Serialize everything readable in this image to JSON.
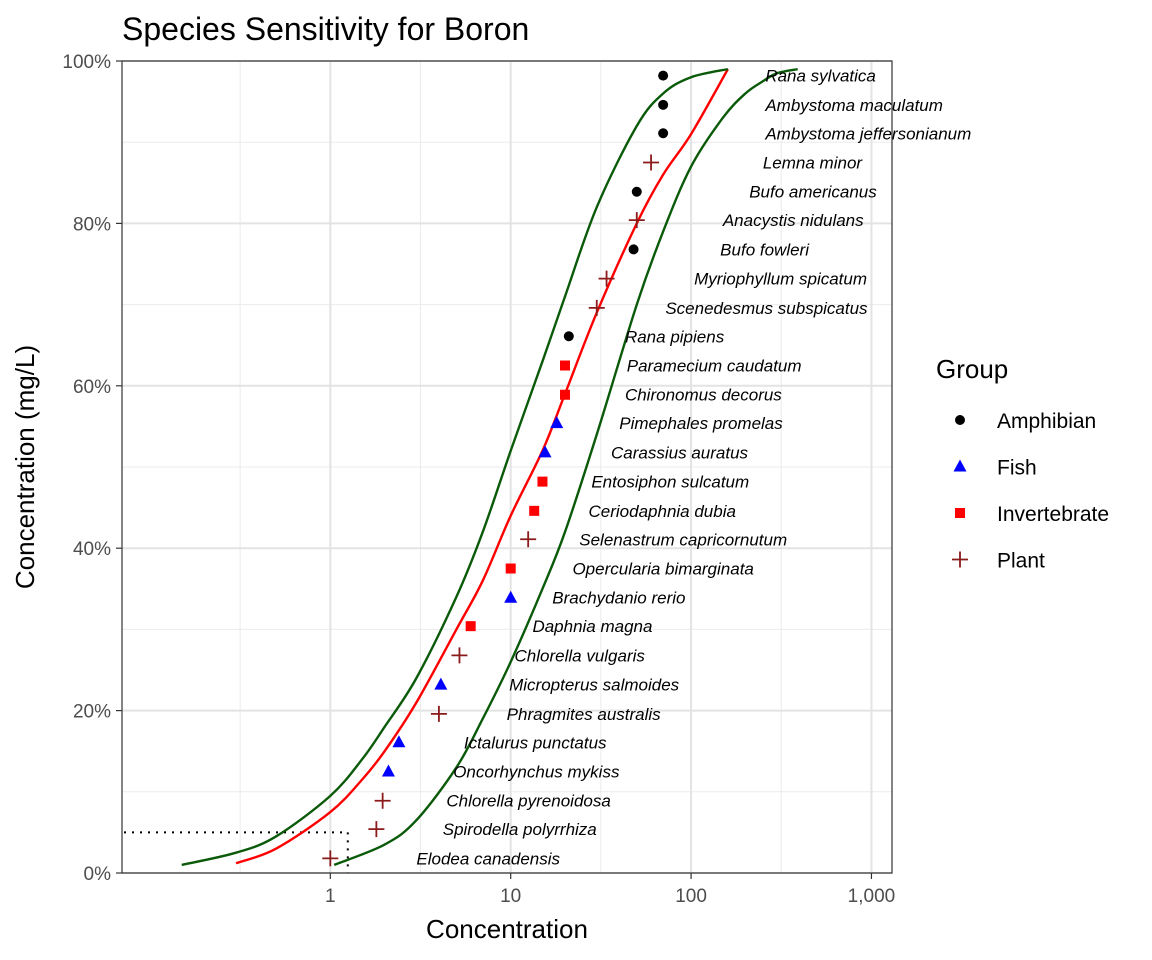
{
  "chart_data": {
    "type": "scatter",
    "title": "Species Sensitivity for Boron",
    "xlabel": "Concentration",
    "ylabel": "Concentration (mg/L)",
    "x_scale": "log10",
    "xlim": [
      0.07,
      1300
    ],
    "ylim": [
      0,
      1
    ],
    "x_ticks": [
      {
        "value": 1,
        "label": "1"
      },
      {
        "value": 10,
        "label": "10"
      },
      {
        "value": 100,
        "label": "100"
      },
      {
        "value": 1000,
        "label": "1,000"
      }
    ],
    "y_ticks": [
      {
        "value": 0,
        "label": "0%"
      },
      {
        "value": 0.2,
        "label": "20%"
      },
      {
        "value": 0.4,
        "label": "40%"
      },
      {
        "value": 0.6,
        "label": "60%"
      },
      {
        "value": 0.8,
        "label": "80%"
      },
      {
        "value": 1,
        "label": "100%"
      }
    ],
    "grid": true,
    "legend": {
      "title": "Group",
      "position": "right",
      "entries": [
        {
          "name": "Amphibian",
          "shape": "circle",
          "color": "#000000"
        },
        {
          "name": "Fish",
          "shape": "triangle",
          "color": "#0000ff"
        },
        {
          "name": "Invertebrate",
          "shape": "square",
          "color": "#ff0000"
        },
        {
          "name": "Plant",
          "shape": "plus",
          "color": "#8b1a1a"
        }
      ]
    },
    "points": [
      {
        "species": "Elodea canadensis",
        "group": "Plant",
        "x": 1.0,
        "y": 0.018
      },
      {
        "species": "Spirodella polyrrhiza",
        "group": "Plant",
        "x": 1.8,
        "y": 0.054
      },
      {
        "species": "Chlorella pyrenoidosa",
        "group": "Plant",
        "x": 1.95,
        "y": 0.089
      },
      {
        "species": "Oncorhynchus mykiss",
        "group": "Fish",
        "x": 2.1,
        "y": 0.125
      },
      {
        "species": "Ictalurus punctatus",
        "group": "Fish",
        "x": 2.4,
        "y": 0.161
      },
      {
        "species": "Phragmites australis",
        "group": "Plant",
        "x": 4.0,
        "y": 0.196
      },
      {
        "species": "Micropterus salmoides",
        "group": "Fish",
        "x": 4.1,
        "y": 0.232
      },
      {
        "species": "Chlorella vulgaris",
        "group": "Plant",
        "x": 5.2,
        "y": 0.268
      },
      {
        "species": "Daphnia magna",
        "group": "Invertebrate",
        "x": 6.0,
        "y": 0.304
      },
      {
        "species": "Brachydanio rerio",
        "group": "Fish",
        "x": 10,
        "y": 0.339
      },
      {
        "species": "Opercularia bimarginata",
        "group": "Invertebrate",
        "x": 10,
        "y": 0.375
      },
      {
        "species": "Selenastrum capricornutum",
        "group": "Plant",
        "x": 12.5,
        "y": 0.411
      },
      {
        "species": "Ceriodaphnia dubia",
        "group": "Invertebrate",
        "x": 13.5,
        "y": 0.446
      },
      {
        "species": "Entosiphon sulcatum",
        "group": "Invertebrate",
        "x": 15,
        "y": 0.482
      },
      {
        "species": "Carassius auratus",
        "group": "Fish",
        "x": 15.5,
        "y": 0.518
      },
      {
        "species": "Pimephales promelas",
        "group": "Fish",
        "x": 18,
        "y": 0.554
      },
      {
        "species": "Chironomus decorus",
        "group": "Invertebrate",
        "x": 20,
        "y": 0.589
      },
      {
        "species": "Paramecium caudatum",
        "group": "Invertebrate",
        "x": 20,
        "y": 0.625
      },
      {
        "species": "Rana pipiens",
        "group": "Amphibian",
        "x": 21,
        "y": 0.661
      },
      {
        "species": "Scenedesmus subspicatus",
        "group": "Plant",
        "x": 30,
        "y": 0.696
      },
      {
        "species": "Myriophyllum spicatum",
        "group": "Plant",
        "x": 34,
        "y": 0.732
      },
      {
        "species": "Bufo fowleri",
        "group": "Amphibian",
        "x": 48,
        "y": 0.768
      },
      {
        "species": "Anacystis nidulans",
        "group": "Plant",
        "x": 50,
        "y": 0.804
      },
      {
        "species": "Bufo americanus",
        "group": "Amphibian",
        "x": 50,
        "y": 0.839
      },
      {
        "species": "Lemna minor",
        "group": "Plant",
        "x": 60,
        "y": 0.875
      },
      {
        "species": "Ambystoma jeffersonianum",
        "group": "Amphibian",
        "x": 70,
        "y": 0.911
      },
      {
        "species": "Ambystoma maculatum",
        "group": "Amphibian",
        "x": 70,
        "y": 0.946
      },
      {
        "species": "Rana sylvatica",
        "group": "Amphibian",
        "x": 70,
        "y": 0.982
      }
    ],
    "label_x": [
      3.0,
      4.2,
      4.4,
      4.8,
      5.5,
      9.5,
      9.8,
      10.5,
      13.2,
      17,
      22,
      24,
      27,
      28,
      36,
      40,
      43,
      44,
      43,
      72,
      104,
      145,
      150,
      210,
      250,
      258,
      258,
      258
    ],
    "curves": [
      {
        "name": "fit",
        "color": "#ff0000",
        "points": [
          [
            0.3,
            0.012
          ],
          [
            0.5,
            0.03
          ],
          [
            1,
            0.075
          ],
          [
            1.5,
            0.115
          ],
          [
            2,
            0.15
          ],
          [
            3,
            0.21
          ],
          [
            5,
            0.3
          ],
          [
            7,
            0.36
          ],
          [
            10,
            0.44
          ],
          [
            15,
            0.52
          ],
          [
            20,
            0.59
          ],
          [
            30,
            0.69
          ],
          [
            50,
            0.8
          ],
          [
            70,
            0.86
          ],
          [
            100,
            0.91
          ],
          [
            160,
            0.99
          ]
        ]
      },
      {
        "name": "lower",
        "color": "#0a5a0a",
        "points": [
          [
            0.15,
            0.01
          ],
          [
            0.3,
            0.025
          ],
          [
            0.5,
            0.045
          ],
          [
            1,
            0.095
          ],
          [
            1.5,
            0.14
          ],
          [
            2,
            0.18
          ],
          [
            3,
            0.24
          ],
          [
            5,
            0.34
          ],
          [
            7,
            0.42
          ],
          [
            10,
            0.52
          ],
          [
            15,
            0.63
          ],
          [
            20,
            0.71
          ],
          [
            30,
            0.82
          ],
          [
            50,
            0.92
          ],
          [
            70,
            0.96
          ],
          [
            100,
            0.98
          ],
          [
            160,
            0.99
          ]
        ]
      },
      {
        "name": "upper",
        "color": "#0a5a0a",
        "points": [
          [
            1.05,
            0.01
          ],
          [
            2,
            0.035
          ],
          [
            3,
            0.065
          ],
          [
            5,
            0.13
          ],
          [
            7,
            0.19
          ],
          [
            10,
            0.26
          ],
          [
            15,
            0.35
          ],
          [
            20,
            0.42
          ],
          [
            30,
            0.54
          ],
          [
            50,
            0.7
          ],
          [
            70,
            0.79
          ],
          [
            100,
            0.87
          ],
          [
            150,
            0.93
          ],
          [
            200,
            0.96
          ],
          [
            250,
            0.975
          ],
          [
            300,
            0.985
          ],
          [
            390,
            0.99
          ]
        ]
      }
    ],
    "hc5_guide": {
      "x": 1.25,
      "y": 0.05
    }
  }
}
